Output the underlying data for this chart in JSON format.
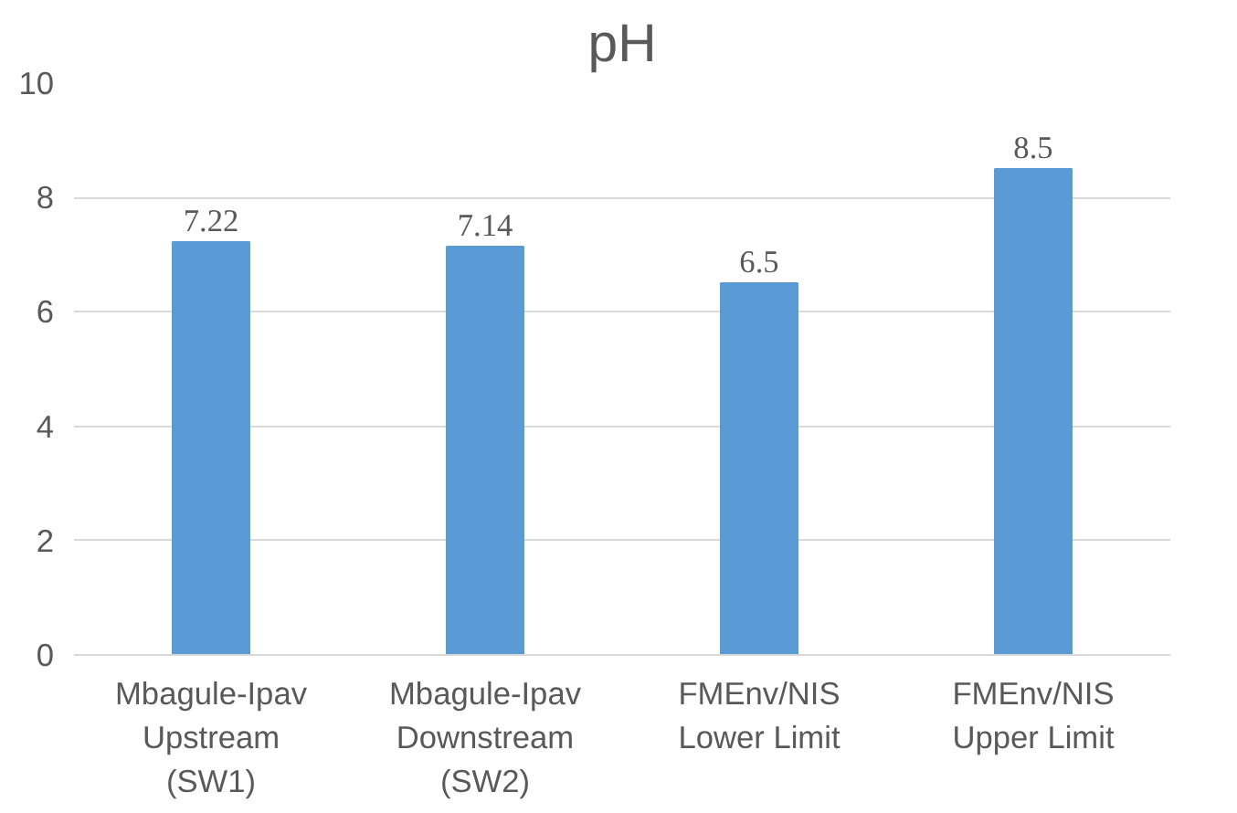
{
  "chart_data": {
    "type": "bar",
    "title": "pH",
    "categories": [
      "Mbagule-Ipav\nUpstream\n(SW1)",
      "Mbagule-Ipav\nDownstream\n(SW2)",
      "FMEnv/NIS\nLower Limit",
      "FMEnv/NIS\nUpper Limit"
    ],
    "values": [
      7.22,
      7.14,
      6.5,
      8.5
    ],
    "color": "#5b9bd5",
    "ylim": [
      0,
      10
    ],
    "yticks": [
      0,
      2,
      4,
      6,
      8,
      10
    ],
    "grid": "y",
    "data_labels": true
  }
}
